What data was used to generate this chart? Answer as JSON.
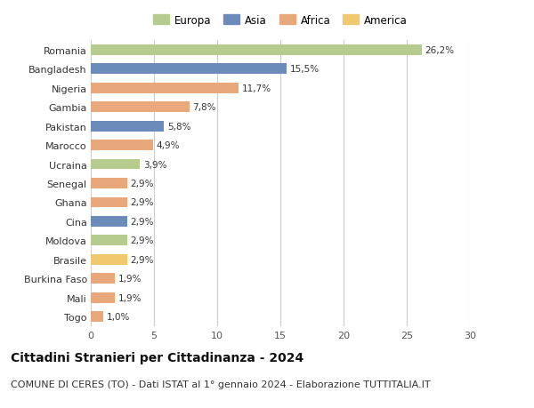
{
  "countries": [
    "Romania",
    "Bangladesh",
    "Nigeria",
    "Gambia",
    "Pakistan",
    "Marocco",
    "Ucraina",
    "Senegal",
    "Ghana",
    "Cina",
    "Moldova",
    "Brasile",
    "Burkina Faso",
    "Mali",
    "Togo"
  ],
  "values": [
    26.2,
    15.5,
    11.7,
    7.8,
    5.8,
    4.9,
    3.9,
    2.9,
    2.9,
    2.9,
    2.9,
    2.9,
    1.9,
    1.9,
    1.0
  ],
  "labels": [
    "26,2%",
    "15,5%",
    "11,7%",
    "7,8%",
    "5,8%",
    "4,9%",
    "3,9%",
    "2,9%",
    "2,9%",
    "2,9%",
    "2,9%",
    "2,9%",
    "1,9%",
    "1,9%",
    "1,0%"
  ],
  "continents": [
    "Europa",
    "Asia",
    "Africa",
    "Africa",
    "Asia",
    "Africa",
    "Europa",
    "Africa",
    "Africa",
    "Asia",
    "Europa",
    "America",
    "Africa",
    "Africa",
    "Africa"
  ],
  "colors": {
    "Europa": "#b5cc8e",
    "Asia": "#6b8cba",
    "Africa": "#e8a87c",
    "America": "#f0c96e"
  },
  "legend_order": [
    "Europa",
    "Asia",
    "Africa",
    "America"
  ],
  "xlim": [
    0,
    30
  ],
  "xticks": [
    0,
    5,
    10,
    15,
    20,
    25,
    30
  ],
  "title": "Cittadini Stranieri per Cittadinanza - 2024",
  "subtitle": "COMUNE DI CERES (TO) - Dati ISTAT al 1° gennaio 2024 - Elaborazione TUTTITALIA.IT",
  "title_fontsize": 10,
  "subtitle_fontsize": 8,
  "background_color": "#ffffff",
  "grid_color": "#cccccc",
  "bar_height": 0.55
}
